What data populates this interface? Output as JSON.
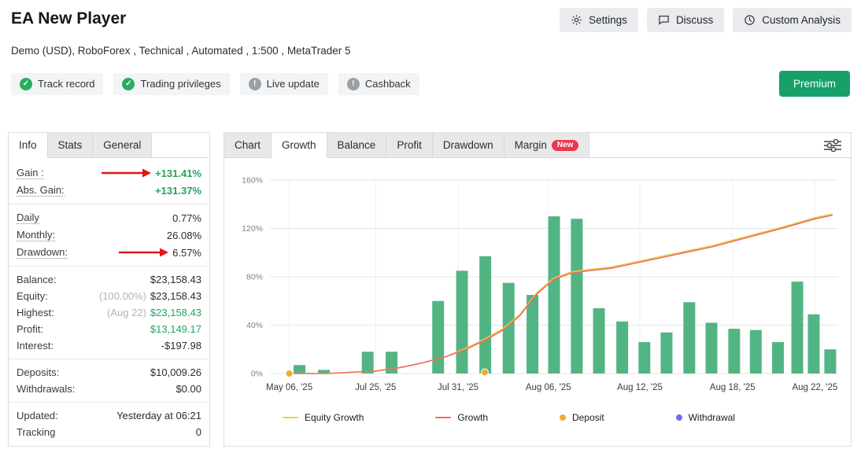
{
  "colors": {
    "green_text": "#23a45f",
    "bar": "#53b483",
    "growth_line": "#ef6c60",
    "equity_line": "#e9d14f",
    "deposit": "#f5a833",
    "withdrawal": "#6f6cf2",
    "premium_bg": "#16a06a",
    "badge_ok": "#27ae60",
    "badge_info": "#9aa0a6",
    "arrow": "#e01515",
    "new_badge": "#e8384f"
  },
  "header": {
    "title": "EA New Player",
    "actions": [
      {
        "label": "Settings",
        "icon": "gear-icon"
      },
      {
        "label": "Discuss",
        "icon": "chat-icon"
      },
      {
        "label": "Custom Analysis",
        "icon": "clock-icon"
      }
    ],
    "subtitle": {
      "prefix": "Demo (USD), ",
      "link": "RoboForex",
      "suffix": " , Technical , Automated , 1:500 , MetaTrader 5"
    },
    "badges": [
      {
        "label": "Track record",
        "status": "ok"
      },
      {
        "label": "Trading privileges",
        "status": "ok"
      },
      {
        "label": "Live update",
        "status": "info"
      },
      {
        "label": "Cashback",
        "status": "info"
      }
    ],
    "premium_label": "Premium"
  },
  "info_panel": {
    "tabs": [
      {
        "label": "Info",
        "active": true
      },
      {
        "label": "Stats",
        "active": false
      },
      {
        "label": "General",
        "active": false
      }
    ],
    "rows": [
      {
        "label": "Gain :",
        "value": "+131.41%",
        "value_class": "green bold",
        "dotted": true,
        "arrow": true
      },
      {
        "label": "Abs. Gain:",
        "value": "+131.37%",
        "value_class": "green bold",
        "dotted": true
      },
      {
        "divider": true
      },
      {
        "label": "Daily",
        "value": "0.77%",
        "dotted": true
      },
      {
        "label": "Monthly:",
        "value": "26.08%",
        "dotted": true
      },
      {
        "label": "Drawdown:",
        "value": "6.57%",
        "dotted": true,
        "arrow": true
      },
      {
        "divider": true
      },
      {
        "label": "Balance:",
        "value": "$23,158.43"
      },
      {
        "label": "Equity:",
        "value": "$23,158.43",
        "muted": "(100.00%)"
      },
      {
        "label": "Highest:",
        "value": "$23,158.43",
        "muted": "(Aug 22)",
        "value_class": "green"
      },
      {
        "label": "Profit:",
        "value": "$13,149.17",
        "value_class": "green"
      },
      {
        "label": "Interest:",
        "value": "-$197.98"
      },
      {
        "divider": true
      },
      {
        "label": "Deposits:",
        "value": "$10,009.26"
      },
      {
        "label": "Withdrawals:",
        "value": "$0.00"
      },
      {
        "divider": true
      },
      {
        "label": "Updated:",
        "value": "Yesterday at 06:21"
      },
      {
        "label": "Tracking",
        "value": "0"
      }
    ]
  },
  "chart_panel": {
    "tabs": [
      {
        "label": "Chart"
      },
      {
        "label": "Growth",
        "active": true
      },
      {
        "label": "Balance"
      },
      {
        "label": "Profit"
      },
      {
        "label": "Drawdown"
      },
      {
        "label": "Margin",
        "badge": "New"
      }
    ]
  },
  "chart_data": {
    "type": "bar+line",
    "ylim": [
      0,
      160
    ],
    "y_ticks": [
      0,
      40,
      80,
      120,
      160
    ],
    "ylabel_ticks": [
      "0%",
      "40%",
      "80%",
      "120%",
      "160%"
    ],
    "x_tick_labels": [
      "May 06, '25",
      "Jul 25, '25",
      "Jul 31, '25",
      "Aug 06, '25",
      "Aug 12, '25",
      "Aug 18, '25",
      "Aug 22, '25"
    ],
    "x_tick_pos": [
      0.034,
      0.186,
      0.331,
      0.49,
      0.651,
      0.814,
      0.959
    ],
    "bars": {
      "points": [
        [
          0.052,
          7
        ],
        [
          0.095,
          3
        ],
        [
          0.172,
          18
        ],
        [
          0.214,
          18
        ],
        [
          0.296,
          60
        ],
        [
          0.338,
          85
        ],
        [
          0.379,
          97
        ],
        [
          0.42,
          75
        ],
        [
          0.462,
          65
        ],
        [
          0.5,
          130
        ],
        [
          0.54,
          128
        ],
        [
          0.579,
          54
        ],
        [
          0.62,
          43
        ],
        [
          0.659,
          26
        ],
        [
          0.698,
          34
        ],
        [
          0.738,
          59
        ],
        [
          0.777,
          42
        ],
        [
          0.817,
          37
        ],
        [
          0.855,
          36
        ],
        [
          0.894,
          26
        ],
        [
          0.928,
          76
        ],
        [
          0.957,
          49
        ],
        [
          0.986,
          20
        ]
      ]
    },
    "series": [
      {
        "name": "Equity Growth",
        "color_key": "equity_line",
        "points": [
          [
            0.034,
            0
          ],
          [
            0.1,
            0
          ],
          [
            0.14,
            1
          ],
          [
            0.186,
            2
          ],
          [
            0.23,
            5
          ],
          [
            0.27,
            9
          ],
          [
            0.31,
            14
          ],
          [
            0.345,
            21
          ],
          [
            0.38,
            29
          ],
          [
            0.41,
            37
          ],
          [
            0.44,
            49
          ],
          [
            0.47,
            67
          ],
          [
            0.5,
            79
          ],
          [
            0.53,
            84
          ],
          [
            0.56,
            86
          ],
          [
            0.6,
            88
          ],
          [
            0.63,
            91
          ],
          [
            0.66,
            94
          ],
          [
            0.7,
            98
          ],
          [
            0.74,
            102
          ],
          [
            0.78,
            106
          ],
          [
            0.82,
            111
          ],
          [
            0.86,
            116
          ],
          [
            0.9,
            121
          ],
          [
            0.93,
            125
          ],
          [
            0.96,
            129
          ],
          [
            0.99,
            132
          ]
        ]
      },
      {
        "name": "Growth",
        "color_key": "growth_line",
        "points": [
          [
            0.034,
            0
          ],
          [
            0.1,
            0
          ],
          [
            0.14,
            1
          ],
          [
            0.186,
            2
          ],
          [
            0.23,
            5
          ],
          [
            0.27,
            9
          ],
          [
            0.31,
            14
          ],
          [
            0.345,
            20
          ],
          [
            0.38,
            28
          ],
          [
            0.41,
            36
          ],
          [
            0.44,
            48
          ],
          [
            0.47,
            66
          ],
          [
            0.5,
            78
          ],
          [
            0.53,
            83
          ],
          [
            0.56,
            85
          ],
          [
            0.6,
            87
          ],
          [
            0.63,
            90
          ],
          [
            0.66,
            93
          ],
          [
            0.7,
            97
          ],
          [
            0.74,
            101
          ],
          [
            0.78,
            105
          ],
          [
            0.82,
            110
          ],
          [
            0.86,
            115
          ],
          [
            0.9,
            120
          ],
          [
            0.93,
            124
          ],
          [
            0.96,
            128
          ],
          [
            0.99,
            131
          ]
        ]
      }
    ],
    "markers": [
      {
        "name": "Deposit",
        "color_key": "deposit",
        "points": [
          [
            0.034,
            0
          ],
          [
            0.378,
            1
          ]
        ]
      },
      {
        "name": "Withdrawal",
        "color_key": "withdrawal",
        "points": []
      }
    ],
    "legend": [
      {
        "label": "Equity Growth",
        "type": "line",
        "color_key": "equity_line"
      },
      {
        "label": "Growth",
        "type": "line",
        "color_key": "growth_line"
      },
      {
        "label": "Deposit",
        "type": "dot",
        "color_key": "deposit"
      },
      {
        "label": "Withdrawal",
        "type": "dot",
        "color_key": "withdrawal"
      }
    ]
  }
}
